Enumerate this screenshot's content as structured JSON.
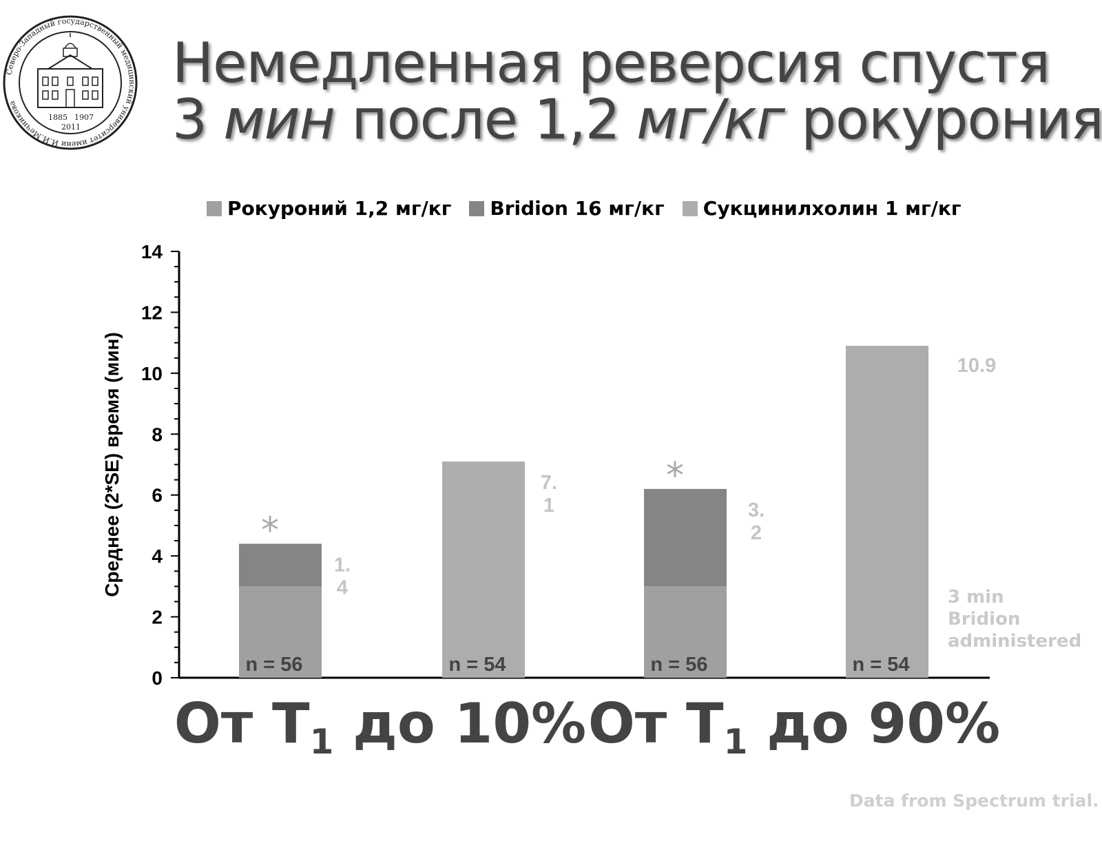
{
  "logo": {
    "ring_text": "Северо-Западный государственный медицинский университет имени И.И.Мечникова",
    "years": [
      "1885",
      "1907",
      "2011"
    ],
    "icon": "university-seal-icon"
  },
  "title": {
    "line1": "Немедленная реверсия спустя",
    "line2_a": "3 ",
    "line2_b": "мин",
    "line2_c": " после 1,2 ",
    "line2_d": "мг/кг",
    "line2_e": " рокурония"
  },
  "legend": [
    {
      "label": "Рокуроний 1,2 мг/кг",
      "color": "#a0a0a0"
    },
    {
      "label": "Bridion 16 мг/кг",
      "color": "#858585"
    },
    {
      "label": "Сукцинилхолин 1 мг/кг",
      "color": "#adadad"
    }
  ],
  "chart_data": {
    "type": "bar",
    "stacked": true,
    "ylabel": "Среднее (2*SE) время (мин)",
    "ylim": [
      0,
      14
    ],
    "yticks": [
      0,
      2,
      4,
      6,
      8,
      10,
      12,
      14
    ],
    "minor_ticks": true,
    "grid": false,
    "bars": [
      {
        "segments": [
          {
            "value": 3,
            "color": "#a0a0a0"
          },
          {
            "value": 1.4,
            "color": "#858585"
          }
        ],
        "label": "1.\n4",
        "n": "n = 56",
        "star": "*"
      },
      {
        "segments": [
          {
            "value": 7.1,
            "color": "#adadad"
          }
        ],
        "label": "7.\n1",
        "n": "n = 54",
        "star": ""
      },
      {
        "segments": [
          {
            "value": 3,
            "color": "#a0a0a0"
          },
          {
            "value": 3.2,
            "color": "#858585"
          }
        ],
        "label": "3.\n2",
        "n": "n = 56",
        "star": "*"
      },
      {
        "segments": [
          {
            "value": 10.9,
            "color": "#adadad"
          }
        ],
        "label": "10.9",
        "n": "n = 54",
        "star": ""
      }
    ],
    "groups": [
      {
        "prefix": "От T",
        "sub": "1",
        "suffix": " до 10%"
      },
      {
        "prefix": "От T",
        "sub": "1",
        "suffix": " до 90%"
      }
    ],
    "annotation": [
      "3 min",
      "Bridion",
      "administered"
    ]
  },
  "footer": "Data from Spectrum trial."
}
